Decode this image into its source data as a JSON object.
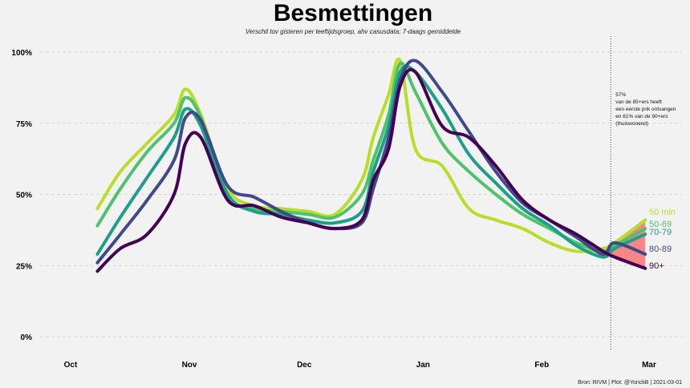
{
  "chart_data": {
    "type": "line",
    "title": "Besmettingen",
    "subtitle": "Verschil tov gisteren per leeftijdsgroep, ahv casusdata; 7-daags gemiddelde",
    "caption": "Bron: RIVM | Plot: @YorickB  |  2021-03-01",
    "x_ticks": [
      {
        "label": "Oct",
        "date": "2020-10-01"
      },
      {
        "label": "Nov",
        "date": "2020-11-01"
      },
      {
        "label": "Dec",
        "date": "2020-12-01"
      },
      {
        "label": "Jan",
        "date": "2021-01-01"
      },
      {
        "label": "Feb",
        "date": "2021-02-01"
      },
      {
        "label": "Mar",
        "date": "2021-03-01"
      }
    ],
    "y_ticks": [
      "0%",
      "25%",
      "50%",
      "75%",
      "100%"
    ],
    "ylim": [
      0,
      100
    ],
    "xlim": [
      "2020-10-01",
      "2021-03-01"
    ],
    "grid": "horizontal dashed",
    "dates": [
      "2020-10-08",
      "2020-10-14",
      "2020-10-21",
      "2020-10-28",
      "2020-10-31",
      "2020-11-04",
      "2020-11-11",
      "2020-11-18",
      "2020-11-25",
      "2020-12-02",
      "2020-12-09",
      "2020-12-16",
      "2020-12-19",
      "2020-12-23",
      "2020-12-26",
      "2020-12-30",
      "2021-01-06",
      "2021-01-13",
      "2021-01-20",
      "2021-01-27",
      "2021-02-03",
      "2021-02-10",
      "2021-02-17",
      "2021-02-20",
      "2021-02-28"
    ],
    "series": [
      {
        "name": "50 min",
        "color": "#b8de29",
        "values": [
          45,
          58,
          68,
          78,
          87,
          78,
          52,
          46,
          45,
          44,
          43,
          55,
          70,
          85,
          97,
          66,
          60,
          45,
          41,
          38,
          33,
          30,
          31,
          33,
          41
        ]
      },
      {
        "name": "50-69",
        "color": "#4ec36b",
        "values": [
          39,
          52,
          65,
          75,
          84,
          77,
          50,
          45,
          44,
          43,
          42,
          50,
          62,
          78,
          96,
          86,
          68,
          58,
          50,
          43,
          38,
          33,
          30,
          32,
          38
        ]
      },
      {
        "name": "70-79",
        "color": "#1f9e89",
        "values": [
          29,
          42,
          56,
          70,
          80,
          74,
          50,
          44,
          43,
          41,
          40,
          44,
          58,
          74,
          93,
          93,
          80,
          64,
          54,
          45,
          39,
          32,
          28,
          31,
          36
        ]
      },
      {
        "name": "80-89",
        "color": "#3e4a89",
        "values": [
          26,
          36,
          48,
          62,
          77,
          76,
          53,
          49,
          44,
          40,
          38,
          40,
          52,
          70,
          90,
          97,
          86,
          72,
          58,
          47,
          41,
          35,
          29,
          33,
          29
        ]
      },
      {
        "name": "90+",
        "color": "#440154",
        "values": [
          23,
          31,
          36,
          50,
          68,
          70,
          48,
          46,
          42,
          40,
          38,
          41,
          55,
          66,
          88,
          93,
          74,
          70,
          60,
          48,
          41,
          36,
          30,
          28,
          24
        ]
      }
    ],
    "highlight_fill_color": "#f87a7a",
    "vertical_marker_date": "2021-02-19",
    "annotation": [
      "57%",
      "van de 85+ers heeft",
      "een eerste prik ontvangen",
      "en 61% van de 90+ers",
      "(thuiswonend)"
    ]
  }
}
